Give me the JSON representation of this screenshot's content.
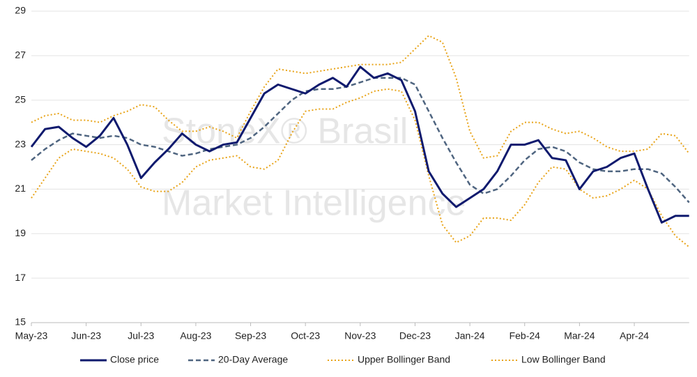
{
  "chart_data": {
    "type": "line",
    "watermark": [
      "StoneX® Brasil",
      "Market Intelligence"
    ],
    "categories": [
      "May-23",
      null,
      null,
      null,
      "Jun-23",
      null,
      null,
      null,
      "Jul-23",
      null,
      null,
      null,
      "Aug-23",
      null,
      null,
      null,
      "Sep-23",
      null,
      null,
      null,
      "Oct-23",
      null,
      null,
      null,
      "Nov-23",
      null,
      null,
      null,
      "Dec-23",
      null,
      null,
      null,
      "Jan-24",
      null,
      null,
      null,
      "Feb-24",
      null,
      null,
      null,
      "Mar-24",
      null,
      null,
      null,
      "Apr-24",
      null,
      null,
      null,
      null
    ],
    "series": [
      {
        "name": "Close price",
        "color": "#0f1a6e",
        "style": "solid",
        "values": [
          22.9,
          23.7,
          23.8,
          23.3,
          22.9,
          23.4,
          24.2,
          23.0,
          21.5,
          22.2,
          22.8,
          23.5,
          23.0,
          22.7,
          23.0,
          23.1,
          24.2,
          25.3,
          25.7,
          25.5,
          25.3,
          25.7,
          26.0,
          25.6,
          26.5,
          26.0,
          26.2,
          25.9,
          24.5,
          21.8,
          20.8,
          20.2,
          20.6,
          21.0,
          21.8,
          23.0,
          23.0,
          23.2,
          22.4,
          22.3,
          21.0,
          21.8,
          22.0,
          22.4,
          22.6,
          21.0,
          19.5,
          19.8,
          19.8
        ]
      },
      {
        "name": "20-Day Average",
        "color": "#4f6580",
        "style": "dashed",
        "values": [
          22.3,
          22.8,
          23.2,
          23.5,
          23.4,
          23.3,
          23.4,
          23.3,
          23.0,
          22.9,
          22.7,
          22.5,
          22.6,
          22.8,
          22.9,
          23.0,
          23.3,
          23.8,
          24.4,
          25.0,
          25.4,
          25.5,
          25.5,
          25.6,
          25.8,
          26.0,
          26.0,
          26.0,
          25.7,
          24.5,
          23.3,
          22.2,
          21.2,
          20.8,
          21.0,
          21.6,
          22.3,
          22.8,
          22.9,
          22.7,
          22.2,
          21.9,
          21.8,
          21.8,
          21.9,
          21.9,
          21.7,
          21.1,
          20.4
        ]
      },
      {
        "name": "Upper Bollinger Band",
        "color": "#e8a317",
        "style": "dotted",
        "values": [
          24.0,
          24.3,
          24.4,
          24.1,
          24.1,
          24.0,
          24.3,
          24.5,
          24.8,
          24.7,
          24.1,
          23.6,
          23.6,
          23.8,
          23.6,
          23.3,
          24.5,
          25.6,
          26.4,
          26.3,
          26.2,
          26.3,
          26.4,
          26.5,
          26.6,
          26.6,
          26.6,
          26.7,
          27.3,
          27.9,
          27.6,
          26.0,
          23.6,
          22.4,
          22.5,
          23.6,
          24.0,
          24.0,
          23.7,
          23.5,
          23.6,
          23.3,
          22.9,
          22.7,
          22.7,
          22.8,
          23.5,
          23.4,
          22.6
        ]
      },
      {
        "name": "Low Bollinger Band",
        "color": "#e8a317",
        "style": "dotted",
        "values": [
          20.6,
          21.5,
          22.4,
          22.8,
          22.7,
          22.6,
          22.4,
          21.9,
          21.1,
          20.9,
          20.9,
          21.3,
          22.0,
          22.3,
          22.4,
          22.5,
          22.0,
          21.9,
          22.3,
          23.5,
          24.5,
          24.6,
          24.6,
          24.9,
          25.1,
          25.4,
          25.5,
          25.4,
          24.1,
          21.6,
          19.4,
          18.6,
          18.9,
          19.7,
          19.7,
          19.6,
          20.3,
          21.3,
          22.0,
          21.9,
          21.0,
          20.6,
          20.7,
          21.0,
          21.4,
          21.0,
          19.8,
          18.9,
          18.4
        ]
      }
    ],
    "ylim": [
      15,
      29
    ],
    "yticks": [
      15,
      17,
      19,
      21,
      23,
      25,
      27,
      29
    ],
    "grid": true,
    "legend": "bottom"
  }
}
